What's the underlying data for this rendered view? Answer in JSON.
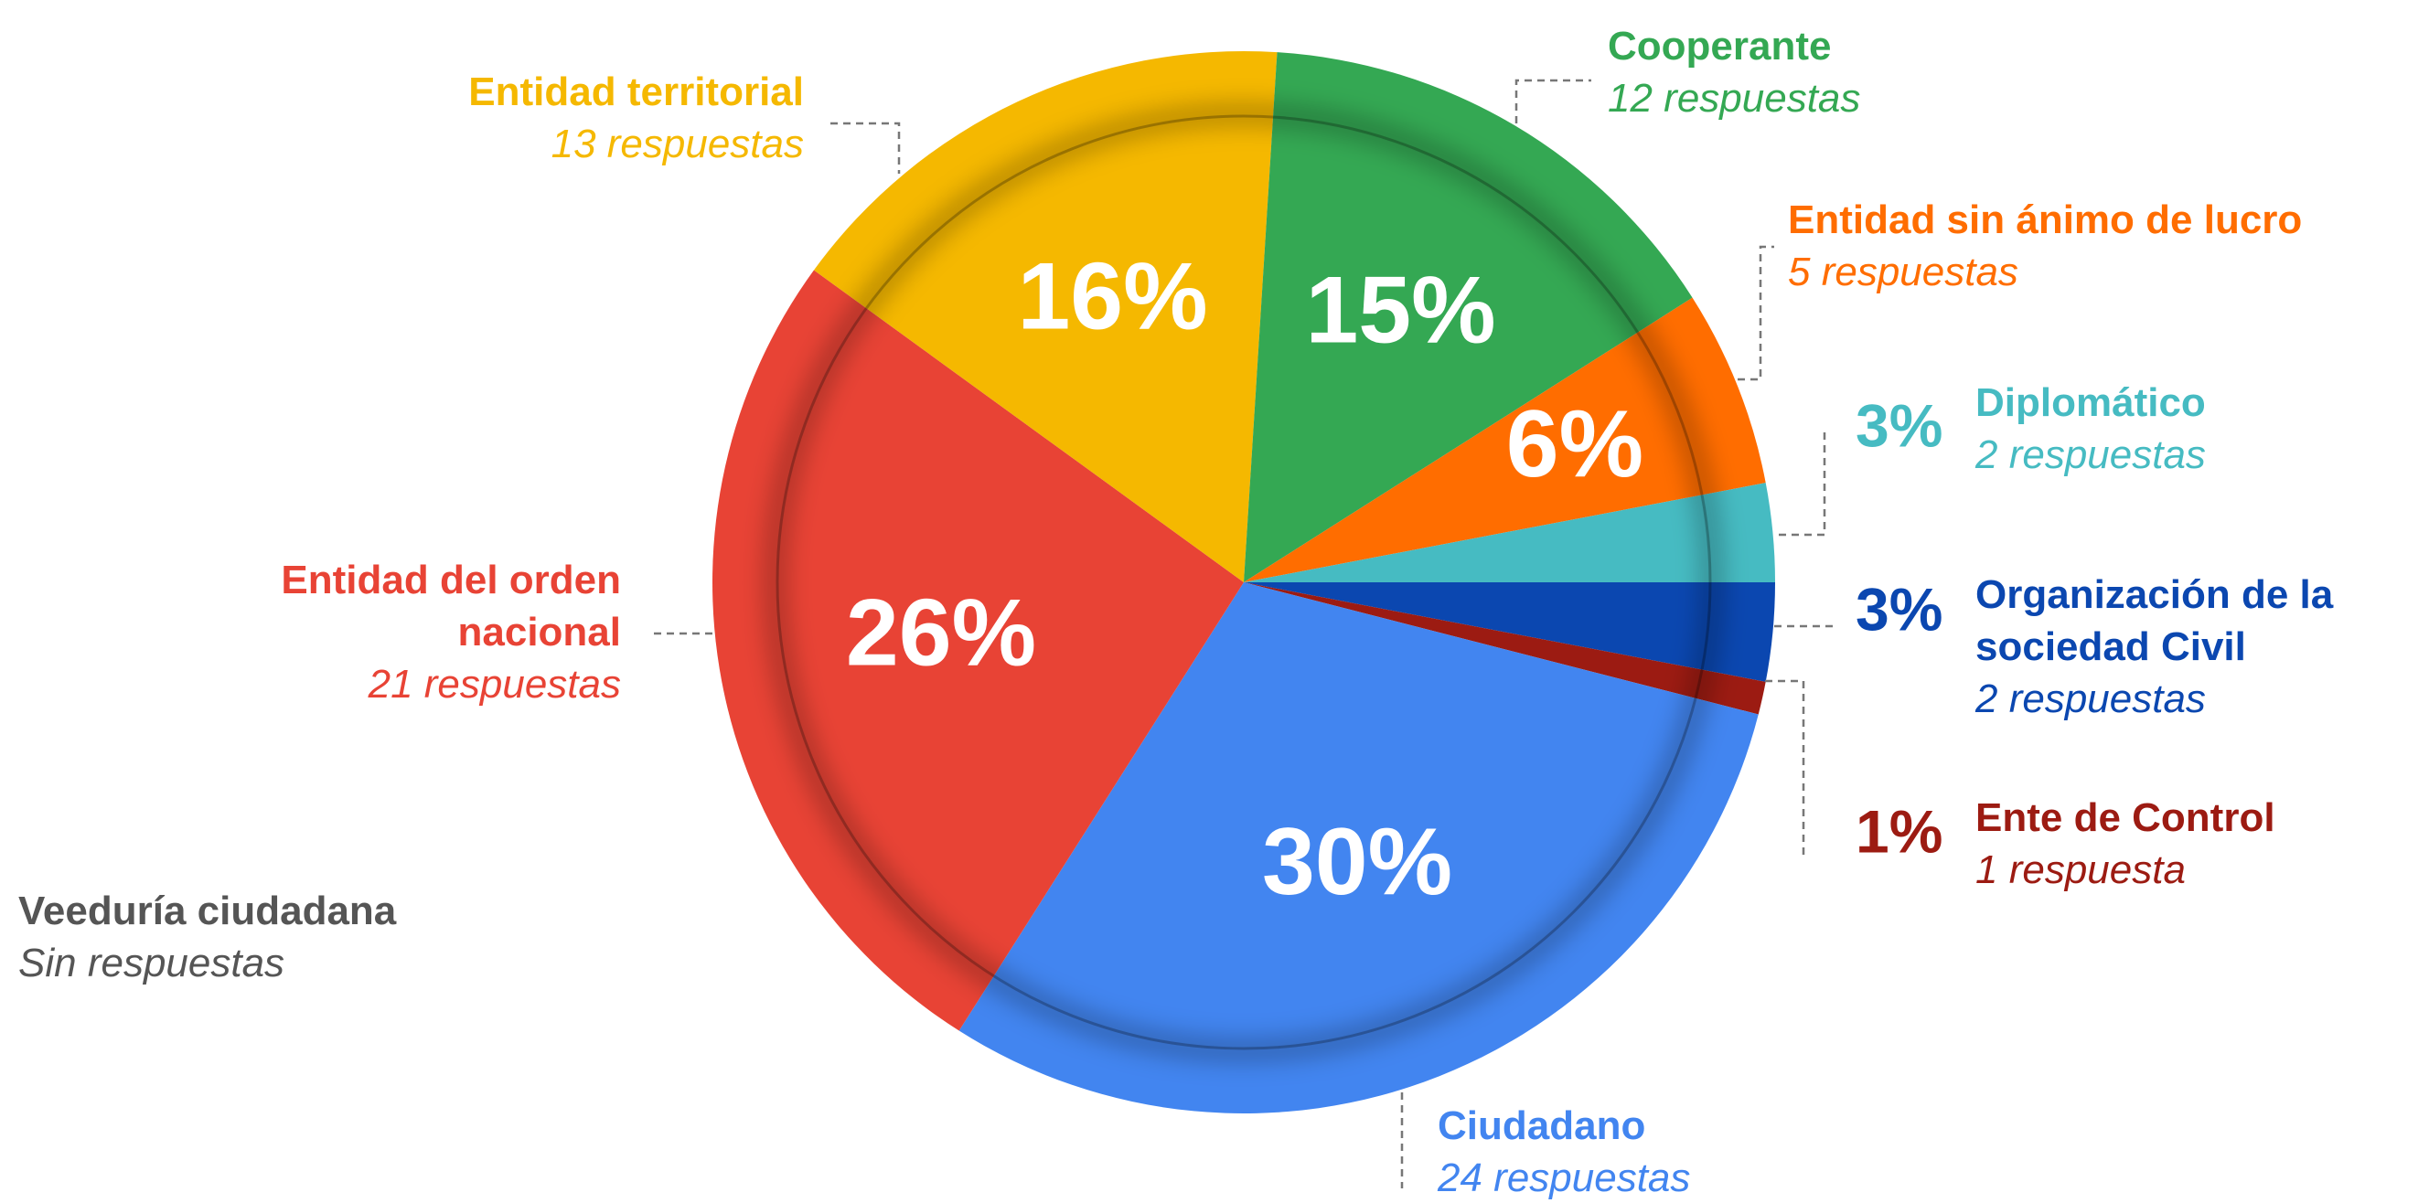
{
  "chart_data": {
    "type": "pie",
    "categories": [
      "Organización de la sociedad Civil",
      "Ente de Control",
      "Ciudadano",
      "Entidad del orden nacional",
      "Entidad territorial",
      "Cooperante",
      "Entidad sin ánimo de lucro",
      "Diplomático",
      "Veeduría ciudadana"
    ],
    "values": [
      3,
      1,
      30,
      26,
      16,
      15,
      6,
      3,
      0
    ],
    "value_labels": [
      "3%",
      "1%",
      "30%",
      "26%",
      "16%",
      "15%",
      "6%",
      "3%",
      null
    ],
    "detail_labels": [
      "2 respuestas",
      "1 respuesta",
      "24 respuestas",
      "21 respuestas",
      "13 respuestas",
      "12 respuestas",
      "5 respuestas",
      "2 respuestas",
      "Sin respuestas"
    ],
    "colors": [
      "#0b47b0",
      "#9c1b12",
      "#4285f0",
      "#e84335",
      "#f5b800",
      "#34a853",
      "#ff6d00",
      "#46bbc2",
      "#555555"
    ]
  }
}
